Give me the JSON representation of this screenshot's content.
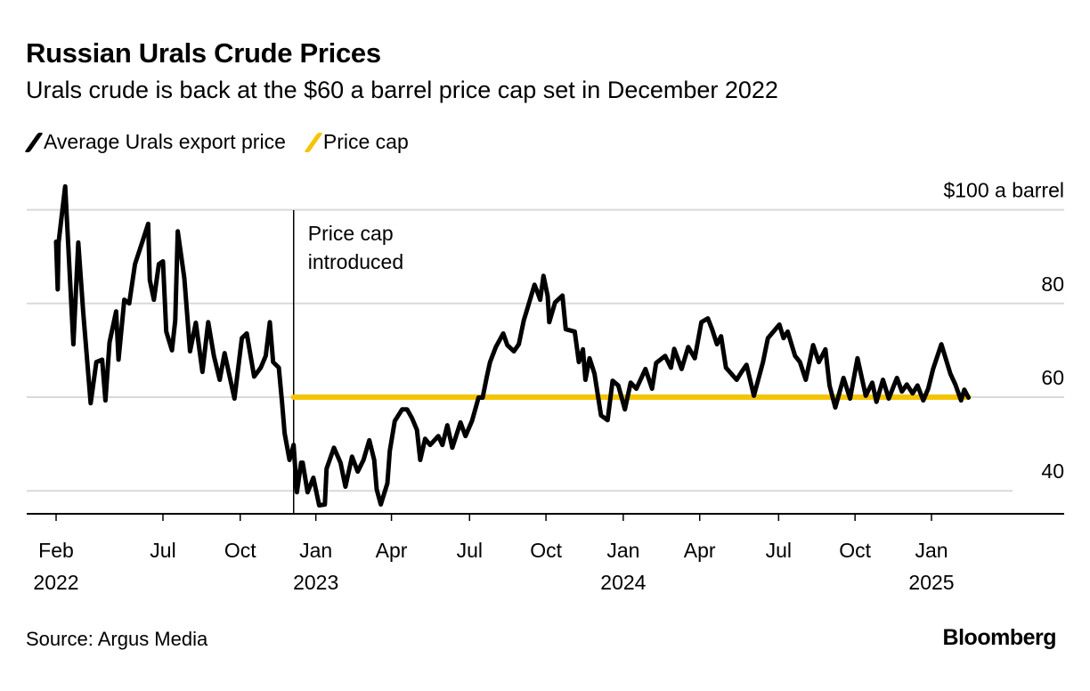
{
  "title": "Russian Urals Crude Prices",
  "subtitle": "Urals crude is back at the $60 a barrel price cap set in December 2022",
  "legend": [
    {
      "label": "Average Urals export price",
      "color": "#000000"
    },
    {
      "label": "Price cap",
      "color": "#F5C400"
    }
  ],
  "source": "Source: Argus Media",
  "brand": "Bloomberg",
  "chart_data": {
    "type": "line",
    "title": "Russian Urals Crude Prices",
    "x_unit": "days since 2022-02-01",
    "ylabel": "$ a barrel",
    "ylim": [
      35.2,
      100
    ],
    "xlim": [
      0,
      1110
    ],
    "y_ticks": [
      {
        "value": 100,
        "label": "$100 a barrel"
      },
      {
        "value": 80,
        "label": "80"
      },
      {
        "value": 60,
        "label": "60"
      },
      {
        "value": 40,
        "label": "40"
      }
    ],
    "x_ticks": [
      {
        "day": 0,
        "label": "Feb",
        "year": "2022"
      },
      {
        "day": 130,
        "label": "Jul",
        "year": ""
      },
      {
        "day": 224,
        "label": "Oct",
        "year": ""
      },
      {
        "day": 316,
        "label": "Jan",
        "year": "2023"
      },
      {
        "day": 408,
        "label": "Apr",
        "year": ""
      },
      {
        "day": 503,
        "label": "Jul",
        "year": ""
      },
      {
        "day": 596,
        "label": "Oct",
        "year": ""
      },
      {
        "day": 690,
        "label": "Jan",
        "year": "2024"
      },
      {
        "day": 783,
        "label": "Apr",
        "year": ""
      },
      {
        "day": 879,
        "label": "Jul",
        "year": ""
      },
      {
        "day": 972,
        "label": "Oct",
        "year": ""
      },
      {
        "day": 1065,
        "label": "Jan",
        "year": "2025"
      }
    ],
    "annotation": {
      "day": 289,
      "label_line1": "Price cap",
      "label_line2": "introduced"
    },
    "series": [
      {
        "name": "Average Urals export price",
        "color": "#000000",
        "points": [
          [
            0,
            93.2
          ],
          [
            2,
            83
          ],
          [
            3,
            93
          ],
          [
            11,
            105
          ],
          [
            21,
            71.3
          ],
          [
            27,
            93
          ],
          [
            33,
            78
          ],
          [
            42,
            58.7
          ],
          [
            49,
            67.5
          ],
          [
            56,
            68
          ],
          [
            60,
            59.3
          ],
          [
            65,
            71.7
          ],
          [
            73,
            78.3
          ],
          [
            76,
            68
          ],
          [
            83,
            80.8
          ],
          [
            89,
            80
          ],
          [
            96,
            88.4
          ],
          [
            105,
            93.2
          ],
          [
            112,
            97
          ],
          [
            114,
            85
          ],
          [
            119,
            80.8
          ],
          [
            125,
            88.4
          ],
          [
            130,
            89
          ],
          [
            134,
            74
          ],
          [
            141,
            70
          ],
          [
            145,
            76.4
          ],
          [
            148,
            95.4
          ],
          [
            156,
            85.4
          ],
          [
            163,
            69.8
          ],
          [
            170,
            75.9
          ],
          [
            178,
            65.4
          ],
          [
            185,
            76
          ],
          [
            192,
            68.8
          ],
          [
            199,
            63.7
          ],
          [
            205,
            69.4
          ],
          [
            217,
            59.7
          ],
          [
            226,
            72.6
          ],
          [
            232,
            73.6
          ],
          [
            241,
            64.4
          ],
          [
            249,
            66.3
          ],
          [
            255,
            68.8
          ],
          [
            260,
            76
          ],
          [
            264,
            67.5
          ],
          [
            271,
            66.3
          ],
          [
            275,
            58.7
          ],
          [
            278,
            52.3
          ],
          [
            284,
            46.6
          ],
          [
            289,
            49.8
          ],
          [
            293,
            39.7
          ],
          [
            298,
            46
          ],
          [
            300,
            46
          ],
          [
            306,
            39.7
          ],
          [
            313,
            42.8
          ],
          [
            320,
            36.9
          ],
          [
            327,
            37.1
          ],
          [
            329,
            44.7
          ],
          [
            338,
            49.2
          ],
          [
            346,
            46
          ],
          [
            352,
            40.9
          ],
          [
            360,
            47.3
          ],
          [
            367,
            44.1
          ],
          [
            374,
            46.6
          ],
          [
            381,
            50.8
          ],
          [
            387,
            46.6
          ],
          [
            390,
            40.3
          ],
          [
            395,
            37.1
          ],
          [
            403,
            41.6
          ],
          [
            406,
            48.5
          ],
          [
            412,
            54.9
          ],
          [
            421,
            57.4
          ],
          [
            427,
            57.4
          ],
          [
            433,
            55.5
          ],
          [
            439,
            53
          ],
          [
            443,
            46.6
          ],
          [
            449,
            51.1
          ],
          [
            455,
            49.8
          ],
          [
            465,
            51.7
          ],
          [
            470,
            49.8
          ],
          [
            476,
            54
          ],
          [
            482,
            49.2
          ],
          [
            492,
            54.6
          ],
          [
            498,
            51.7
          ],
          [
            506,
            54.9
          ],
          [
            514,
            59.9
          ],
          [
            519,
            59.9
          ],
          [
            524,
            64.4
          ],
          [
            528,
            67.5
          ],
          [
            535,
            70.7
          ],
          [
            544,
            73.6
          ],
          [
            549,
            71.1
          ],
          [
            557,
            69.8
          ],
          [
            563,
            71.3
          ],
          [
            569,
            76.4
          ],
          [
            573,
            78.7
          ],
          [
            582,
            84
          ],
          [
            585,
            82.7
          ],
          [
            589,
            80.8
          ],
          [
            593,
            85.9
          ],
          [
            598,
            81.6
          ],
          [
            600,
            76
          ],
          [
            607,
            80.2
          ],
          [
            616,
            81.7
          ],
          [
            620,
            74.5
          ],
          [
            631,
            74
          ],
          [
            636,
            67.5
          ],
          [
            641,
            70.2
          ],
          [
            644,
            63.7
          ],
          [
            649,
            68.3
          ],
          [
            655,
            65
          ],
          [
            663,
            56.1
          ],
          [
            671,
            55.1
          ],
          [
            677,
            63.5
          ],
          [
            684,
            62.5
          ],
          [
            692,
            57.4
          ],
          [
            699,
            63.1
          ],
          [
            706,
            61.8
          ],
          [
            717,
            66
          ],
          [
            725,
            61.8
          ],
          [
            730,
            67.3
          ],
          [
            741,
            68.8
          ],
          [
            748,
            66.3
          ],
          [
            752,
            70.3
          ],
          [
            761,
            66
          ],
          [
            769,
            70.7
          ],
          [
            777,
            68.3
          ],
          [
            785,
            76
          ],
          [
            793,
            76.8
          ],
          [
            798,
            74.5
          ],
          [
            804,
            71.3
          ],
          [
            809,
            73
          ],
          [
            815,
            66.3
          ],
          [
            828,
            63.7
          ],
          [
            834,
            65.4
          ],
          [
            840,
            66.9
          ],
          [
            849,
            60.3
          ],
          [
            860,
            67.5
          ],
          [
            866,
            72.6
          ],
          [
            880,
            75.5
          ],
          [
            885,
            72.6
          ],
          [
            890,
            74
          ],
          [
            899,
            68.8
          ],
          [
            905,
            67.5
          ],
          [
            912,
            63.7
          ],
          [
            921,
            71.1
          ],
          [
            928,
            67.5
          ],
          [
            936,
            70.2
          ],
          [
            941,
            62.5
          ],
          [
            948,
            57.8
          ],
          [
            958,
            64.1
          ],
          [
            966,
            59.7
          ],
          [
            975,
            68.3
          ],
          [
            985,
            60.3
          ],
          [
            993,
            63.1
          ],
          [
            998,
            59
          ],
          [
            1006,
            63.7
          ],
          [
            1013,
            59.7
          ],
          [
            1023,
            64.1
          ],
          [
            1029,
            61.2
          ],
          [
            1035,
            62.7
          ],
          [
            1042,
            60.8
          ],
          [
            1048,
            62.5
          ],
          [
            1055,
            59.3
          ],
          [
            1061,
            61.8
          ],
          [
            1067,
            66
          ],
          [
            1077,
            71.3
          ],
          [
            1088,
            65
          ],
          [
            1094,
            62.7
          ],
          [
            1101,
            59.3
          ],
          [
            1105,
            61.6
          ],
          [
            1110,
            59.9
          ]
        ]
      },
      {
        "name": "Price cap",
        "color": "#F5C400",
        "points": [
          [
            289,
            60
          ],
          [
            1110,
            60
          ]
        ]
      }
    ]
  }
}
